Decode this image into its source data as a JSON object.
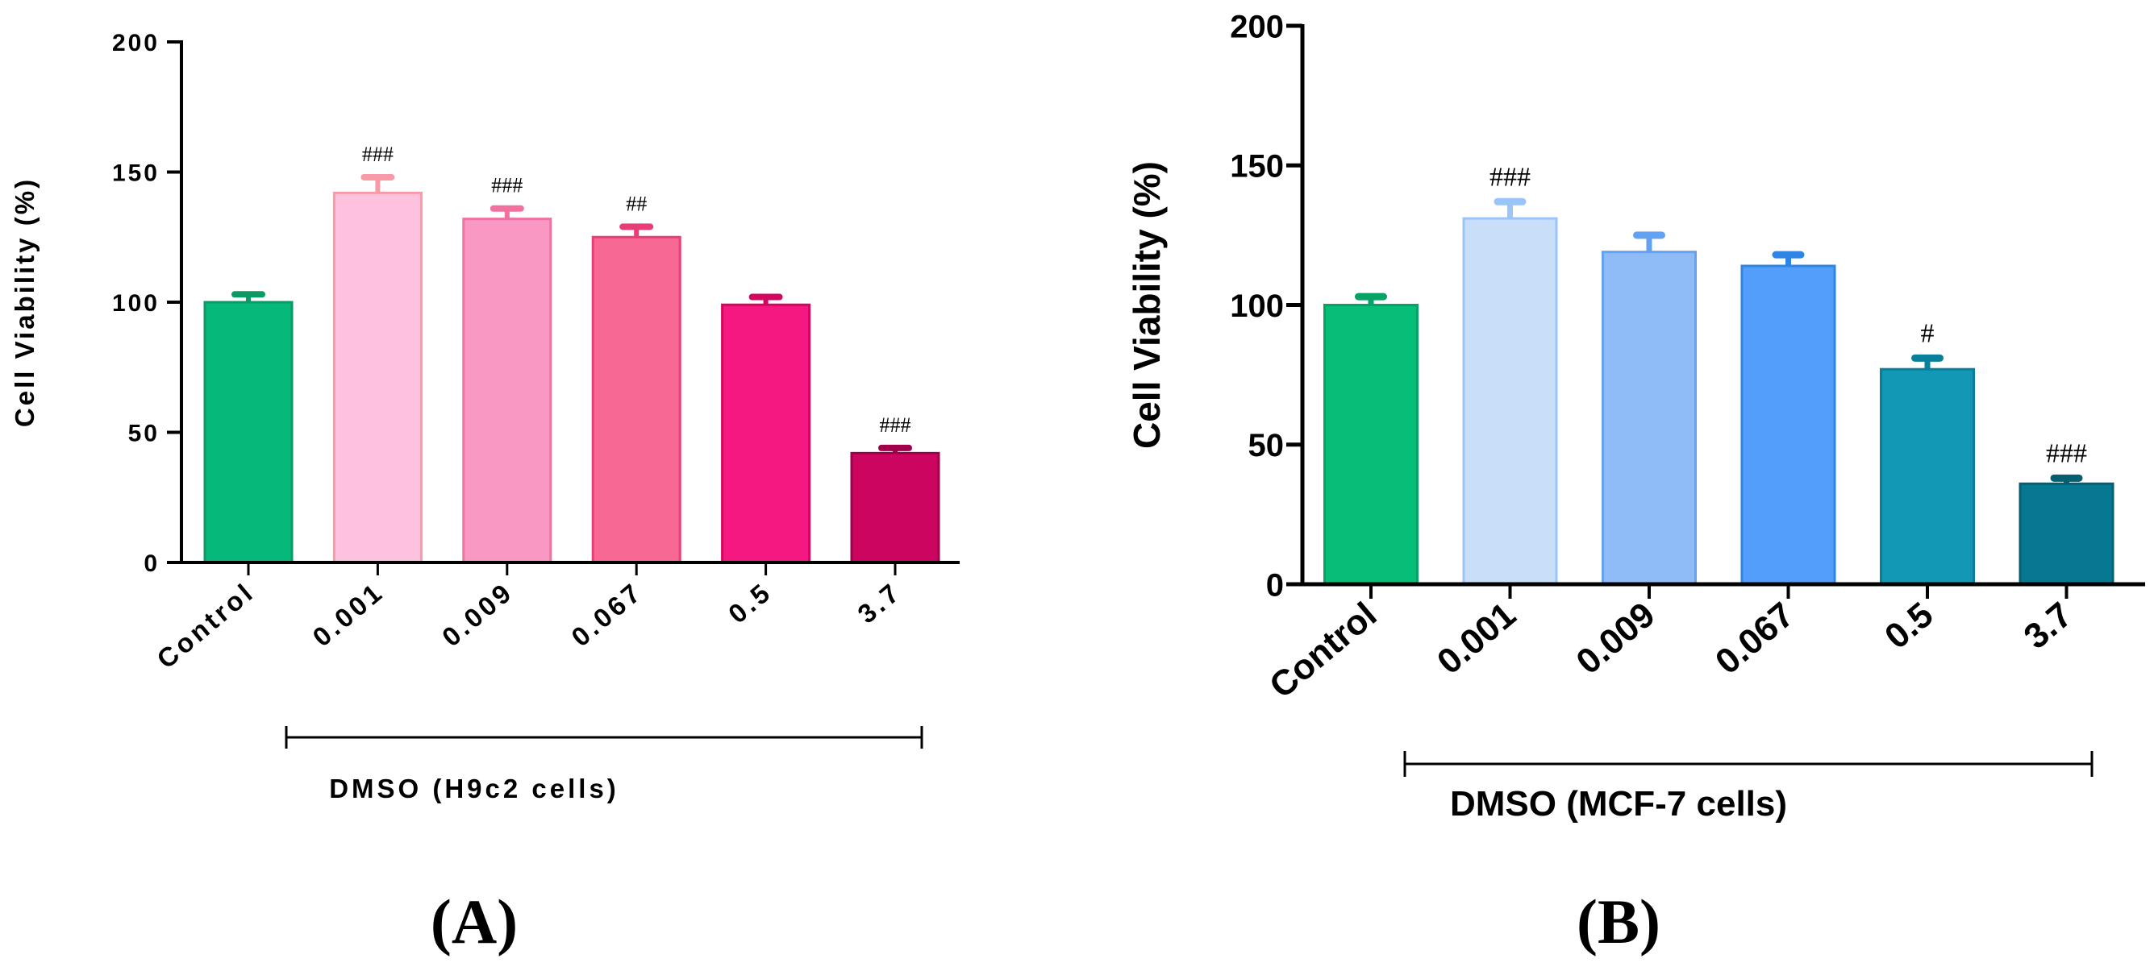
{
  "chart_data": [
    {
      "type": "bar",
      "panel": "(A)",
      "title": "",
      "ylabel": "Cell Viability (%)",
      "xlabel": "",
      "group_label": "DMSO (H9c2 cells)",
      "ylim": [
        0,
        200
      ],
      "yticks": [
        0,
        50,
        100,
        150,
        200
      ],
      "categories": [
        "Control",
        "0.001",
        "0.009",
        "0.067",
        "0.5",
        "3.7"
      ],
      "values": [
        100,
        142,
        132,
        125,
        99,
        42
      ],
      "errors": [
        3,
        6,
        4,
        4,
        3,
        2
      ],
      "annotations": [
        "",
        "###",
        "###",
        "##",
        "",
        "###"
      ],
      "colors": [
        "#06B87A",
        "#FFC2DE",
        "#F998C3",
        "#F86895",
        "#F51880",
        "#CC0660"
      ],
      "edge_colors": [
        "#0B9A64",
        "#F99AA8",
        "#F0709F",
        "#E83E77",
        "#D3075F",
        "#A0004A"
      ]
    },
    {
      "type": "bar",
      "panel": "(B)",
      "title": "",
      "ylabel": "Cell Viability (%)",
      "xlabel": "",
      "group_label": "DMSO (MCF-7 cells)",
      "ylim": [
        0,
        200
      ],
      "yticks": [
        0,
        50,
        100,
        150,
        200
      ],
      "categories": [
        "Control",
        "0.001",
        "0.009",
        "0.067",
        "0.5",
        "3.7"
      ],
      "values": [
        100,
        131,
        119,
        114,
        77,
        36
      ],
      "errors": [
        3,
        6,
        6,
        4,
        4,
        2
      ],
      "annotations": [
        "",
        "###",
        "",
        "",
        "#",
        "###"
      ],
      "colors": [
        "#06BE78",
        "#C9DEF9",
        "#8FBCF7",
        "#529EFA",
        "#1297B4",
        "#077891"
      ],
      "edge_colors": [
        "#07A265",
        "#9AC5FA",
        "#63A2F2",
        "#2E85E5",
        "#0A7F9C",
        "#055F73"
      ]
    }
  ]
}
